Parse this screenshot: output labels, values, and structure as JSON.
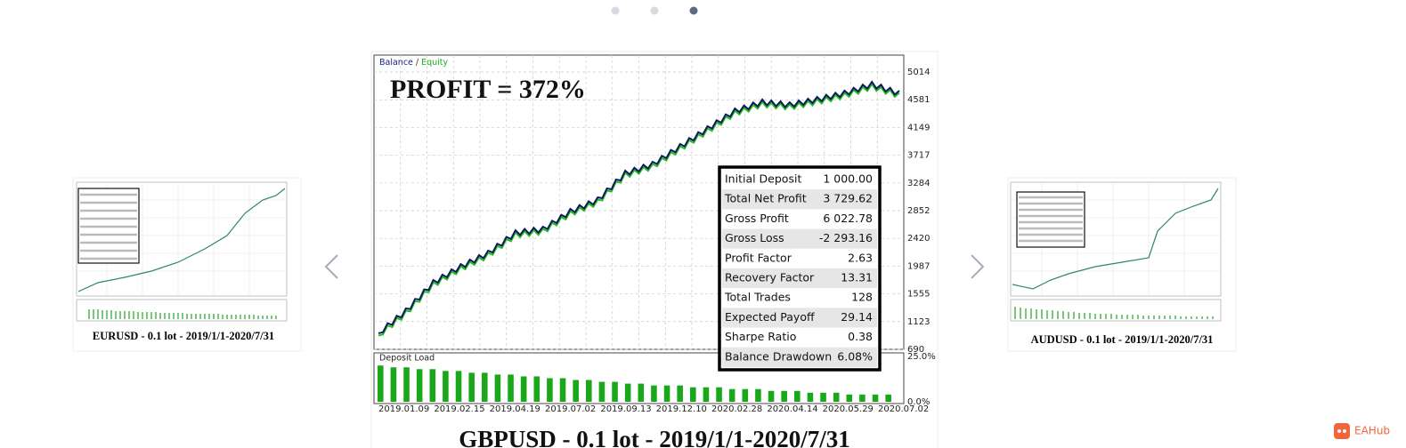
{
  "carousel": {
    "slides": [
      {
        "caption": "EURUSD - 0.1 lot - 2019/1/1-2020/7/31"
      },
      {
        "caption": "GBPUSD - 0.1 lot - 2019/1/1-2020/7/31",
        "legend_balance": "Balance",
        "legend_sep": "/",
        "legend_equity": "Equity",
        "headline": "PROFIT = 372%",
        "ylim": [
          690,
          5014
        ],
        "yticks": [
          5014,
          4581,
          4149,
          3717,
          3284,
          2852,
          2420,
          1987,
          1555,
          1123,
          690
        ],
        "dates": [
          "2019.01.09",
          "2019.02.15",
          "2019.04.19",
          "2019.07.02",
          "2019.09.13",
          "2019.12.10",
          "2020.02.28",
          "2020.04.14",
          "2020.05.29",
          "2020.07.02"
        ],
        "balance": [
          940,
          1286,
          1730,
          1979,
          2187,
          2506,
          2561,
          2838,
          3018,
          3434,
          3573,
          3850,
          4127,
          4404,
          4543,
          4501,
          4584,
          4681,
          4820,
          4681
        ],
        "deposit_title": "Deposit Load",
        "deposit_ticks": [
          {
            "value": 25,
            "label": "25.0%"
          },
          {
            "value": 0,
            "label": "0.0%"
          }
        ],
        "deposit_load": [
          20,
          19,
          19,
          18,
          18,
          17,
          17,
          16,
          16,
          15,
          15,
          14,
          14,
          13,
          13,
          12,
          12,
          11,
          11,
          10,
          10,
          9,
          9,
          9,
          8,
          8,
          8,
          7,
          7,
          7,
          6,
          6,
          6,
          5,
          5,
          5,
          4,
          4,
          4,
          4
        ],
        "stats": [
          [
            "Initial Deposit",
            "1 000.00"
          ],
          [
            "Total Net Profit",
            "3 729.62"
          ],
          [
            "Gross Profit",
            "6 022.78"
          ],
          [
            "Gross Loss",
            "-2 293.16"
          ],
          [
            "Profit Factor",
            "2.63"
          ],
          [
            "Recovery Factor",
            "13.31"
          ],
          [
            "Total Trades",
            "128"
          ],
          [
            "Expected Payoff",
            "29.14"
          ],
          [
            "Sharpe Ratio",
            "0.38"
          ],
          [
            "Balance Drawdown",
            "6.08%"
          ]
        ]
      },
      {
        "caption": "AUDUSD - 0.1 lot - 2019/1/1-2020/7/31"
      }
    ],
    "brand": "EAHub"
  }
}
